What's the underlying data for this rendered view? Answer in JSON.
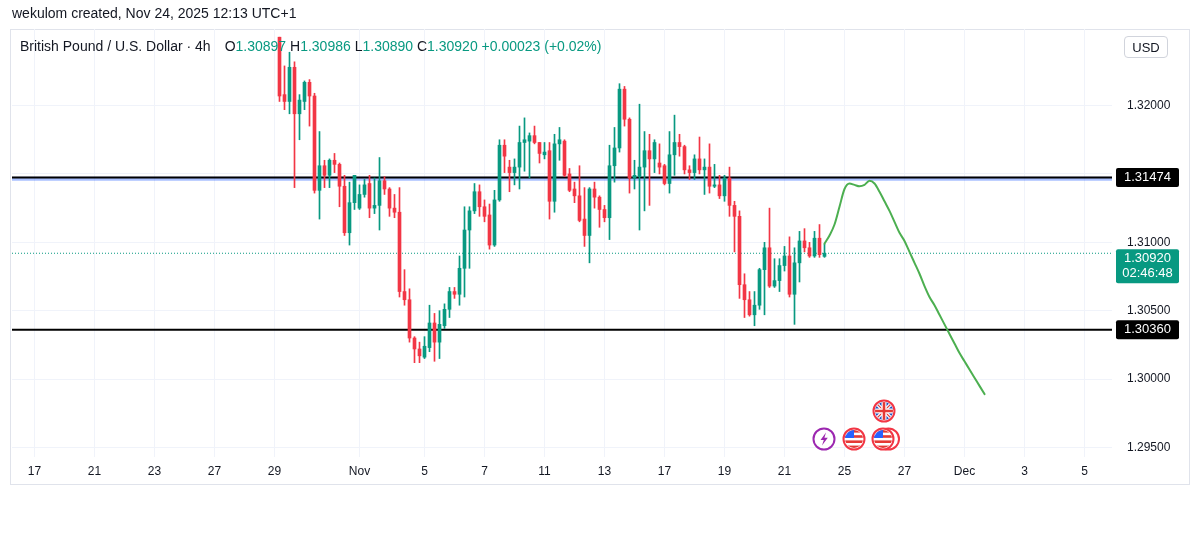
{
  "chart_data": {
    "type": "candlestick",
    "title": "British Pound / U.S. Dollar · 4h",
    "subtitle": "O1.30897 H1.30986 L1.30890 C1.30920 +0.00023 (+0.02%)",
    "ylabel": "USD",
    "annotations": [
      "wekulom created, Nov 24, 2025 12:13 UTC+1"
    ],
    "categories": [
      null,
      null,
      null,
      null,
      "17",
      null,
      null,
      null,
      null,
      null,
      null,
      null,
      null,
      null,
      null,
      null,
      "21",
      null,
      null,
      null,
      null,
      null,
      null,
      null,
      null,
      null,
      null,
      null,
      "23",
      null,
      null,
      null,
      null,
      null,
      null,
      null,
      null,
      null,
      null,
      null,
      "27",
      null,
      null,
      null,
      null,
      null,
      null,
      null,
      null,
      null,
      null,
      null,
      "29",
      null,
      null,
      null,
      null,
      null,
      null,
      null,
      null,
      null,
      null,
      null,
      null,
      null,
      null,
      null,
      null,
      "Nov",
      null,
      null,
      null,
      null,
      null,
      null,
      null,
      null,
      null,
      null,
      null,
      null,
      "5",
      null,
      null,
      null,
      null,
      null,
      null,
      null,
      null,
      null,
      null,
      null,
      "7",
      null,
      null,
      null,
      null,
      null,
      null,
      null,
      null,
      null,
      null,
      null,
      "11",
      null,
      null,
      null,
      null,
      null,
      null,
      null,
      null,
      null,
      null,
      null,
      "13",
      null,
      null,
      null,
      null,
      null,
      null,
      null,
      null,
      null,
      null,
      null,
      "17",
      null,
      null,
      null,
      null,
      null,
      null,
      null,
      null,
      null,
      null,
      null,
      "19",
      null,
      null,
      null,
      null,
      null,
      null,
      null,
      null,
      null,
      null,
      null,
      "21",
      null,
      null,
      null,
      null,
      null,
      null,
      null,
      null,
      null,
      null,
      null,
      "25",
      null,
      null,
      null,
      null,
      null,
      null,
      null,
      null,
      null,
      null,
      null,
      "27",
      null,
      null,
      null,
      null,
      null,
      null,
      null,
      null,
      null,
      null,
      null,
      "Dec",
      null,
      null,
      null,
      null,
      null,
      null,
      null,
      null,
      null,
      null,
      null,
      "3",
      null,
      null,
      null,
      null,
      null,
      null,
      null,
      null,
      null,
      null,
      null,
      "5",
      null,
      null,
      null,
      null,
      null
    ],
    "ohlc": [
      null,
      null,
      null,
      null,
      null,
      null,
      null,
      null,
      null,
      null,
      null,
      null,
      null,
      null,
      null,
      null,
      null,
      null,
      null,
      null,
      null,
      null,
      null,
      null,
      null,
      null,
      null,
      null,
      null,
      null,
      null,
      null,
      null,
      null,
      null,
      null,
      null,
      null,
      null,
      null,
      null,
      null,
      null,
      null,
      null,
      null,
      null,
      null,
      null,
      null,
      null,
      null,
      null,
      [
        1.325,
        1.325,
        1.3203,
        1.3207
      ],
      [
        1.3208,
        1.3229,
        1.3197,
        1.3203
      ],
      [
        1.3203,
        1.3239,
        1.3194,
        1.3228
      ],
      [
        1.3228,
        1.3232,
        1.314,
        1.3194
      ],
      [
        1.3194,
        1.3208,
        1.3175,
        1.3204
      ],
      [
        1.3203,
        1.3218,
        1.3197,
        1.3217
      ],
      [
        1.3217,
        1.3219,
        1.3185,
        1.3207
      ],
      [
        1.3207,
        1.3209,
        1.3136,
        1.3138
      ],
      [
        1.3138,
        1.3181,
        1.3117,
        1.3156
      ],
      [
        1.3156,
        1.316,
        1.314,
        1.3149
      ],
      [
        1.3149,
        1.3161,
        1.314,
        1.316
      ],
      [
        1.316,
        1.3165,
        1.3151,
        1.3157
      ],
      [
        1.3157,
        1.3158,
        1.3126,
        1.3141
      ],
      [
        1.3141,
        1.3149,
        1.3105,
        1.3107
      ],
      [
        1.3107,
        1.3144,
        1.3098,
        1.3129
      ],
      [
        1.3129,
        1.3149,
        1.3124,
        1.3149
      ],
      [
        1.3125,
        1.3142,
        1.3124,
        1.3135
      ],
      [
        1.3135,
        1.3146,
        1.3133,
        1.3142
      ],
      [
        1.3143,
        1.3149,
        1.3118,
        1.3125
      ],
      [
        1.3125,
        1.3147,
        1.3121,
        1.3127
      ],
      [
        1.3127,
        1.3162,
        1.3109,
        1.3145
      ],
      [
        1.3145,
        1.3148,
        1.3135,
        1.3139
      ],
      [
        1.3139,
        1.314,
        1.3119,
        1.3125
      ],
      [
        1.3125,
        1.3135,
        1.3118,
        1.3122
      ],
      [
        1.3122,
        1.314,
        1.306,
        1.3064
      ],
      [
        1.3064,
        1.308,
        1.3054,
        1.3058
      ],
      [
        1.3058,
        1.3066,
        1.3027,
        1.303
      ],
      [
        1.303,
        1.3031,
        1.3012,
        1.3022
      ],
      [
        1.3022,
        1.3027,
        1.3012,
        1.3017
      ],
      [
        1.3016,
        1.3031,
        1.3015,
        1.3024
      ],
      [
        1.3023,
        1.3054,
        1.302,
        1.3041
      ],
      [
        1.3041,
        1.3048,
        1.3013,
        1.3027
      ],
      [
        1.3027,
        1.305,
        1.3015,
        1.304
      ],
      [
        1.3039,
        1.3055,
        1.3037,
        1.3051
      ],
      [
        1.3051,
        1.3067,
        1.3045,
        1.3064
      ],
      [
        1.3064,
        1.3067,
        1.3059,
        1.3062
      ],
      [
        1.3062,
        1.309,
        1.3054,
        1.3081
      ],
      [
        1.3081,
        1.3126,
        1.306,
        1.3109
      ],
      [
        1.3109,
        1.3126,
        1.3081,
        1.3123
      ],
      [
        1.3123,
        1.3143,
        1.3121,
        1.3137
      ],
      [
        1.3137,
        1.3142,
        1.3119,
        1.3126
      ],
      [
        1.3126,
        1.3131,
        1.3115,
        1.3119
      ],
      [
        1.312,
        1.3128,
        1.3095,
        1.3098
      ],
      [
        1.3098,
        1.3138,
        1.3097,
        1.3131
      ],
      [
        1.3131,
        1.3175,
        1.313,
        1.3171
      ],
      [
        1.3171,
        1.3175,
        1.3151,
        1.3163
      ],
      [
        1.3155,
        1.316,
        1.3137,
        1.3151
      ],
      [
        1.3151,
        1.3161,
        1.3142,
        1.3155
      ],
      [
        1.3155,
        1.3185,
        1.3139,
        1.3173
      ],
      [
        1.3173,
        1.3191,
        1.3152,
        1.3175
      ],
      [
        1.3174,
        1.318,
        1.3147,
        1.3178
      ],
      [
        1.3178,
        1.3185,
        1.3172,
        1.3173
      ],
      [
        1.3173,
        1.3173,
        1.3158,
        1.3165
      ],
      [
        1.3164,
        1.3173,
        1.3161,
        1.3166
      ],
      [
        1.3167,
        1.3173,
        1.3117,
        1.313
      ],
      [
        1.313,
        1.3179,
        1.3122,
        1.3172
      ],
      [
        1.3172,
        1.3184,
        1.316,
        1.3175
      ],
      [
        1.3174,
        1.3175,
        1.3148,
        1.3149
      ],
      [
        1.315,
        1.3154,
        1.3137,
        1.3138
      ],
      [
        1.3139,
        1.3144,
        1.3129,
        1.3134
      ],
      [
        1.3134,
        1.3156,
        1.3115,
        1.3116
      ],
      [
        1.3117,
        1.314,
        1.3097,
        1.3105
      ],
      [
        1.3105,
        1.314,
        1.3085,
        1.3139
      ],
      [
        1.3139,
        1.3144,
        1.3125,
        1.3133
      ],
      [
        1.3133,
        1.3134,
        1.3111,
        1.3124
      ],
      [
        1.3124,
        1.3127,
        1.3115,
        1.3118
      ],
      [
        1.3118,
        1.3171,
        1.3102,
        1.3156
      ],
      [
        1.3156,
        1.3184,
        1.3144,
        1.3169
      ],
      [
        1.3169,
        1.3216,
        1.3166,
        1.3212
      ],
      [
        1.3212,
        1.3214,
        1.3185,
        1.319
      ],
      [
        1.319,
        1.3191,
        1.3136,
        1.3147
      ],
      [
        1.3147,
        1.316,
        1.3139,
        1.3149
      ],
      [
        1.3148,
        1.3201,
        1.3109,
        1.3155
      ],
      [
        1.3155,
        1.3181,
        1.3123,
        1.3167
      ],
      [
        1.3167,
        1.3179,
        1.3127,
        1.3161
      ],
      [
        1.3161,
        1.3175,
        1.3151,
        1.3173
      ],
      [
        1.3158,
        1.3172,
        1.315,
        1.3155
      ],
      [
        1.3156,
        1.3157,
        1.3142,
        1.3143
      ],
      [
        1.3143,
        1.3181,
        1.3136,
        1.3164
      ],
      [
        1.3164,
        1.3193,
        1.3149,
        1.3173
      ],
      [
        1.3173,
        1.3179,
        1.3163,
        1.317
      ],
      [
        1.317,
        1.3171,
        1.315,
        1.3153
      ],
      [
        1.3153,
        1.3156,
        1.3146,
        1.3151
      ],
      [
        1.3151,
        1.3164,
        1.3146,
        1.3161
      ],
      [
        1.3161,
        1.3177,
        1.315,
        1.3153
      ],
      [
        1.3153,
        1.3161,
        1.3135,
        1.3155
      ],
      [
        1.3155,
        1.3172,
        1.3136,
        1.3141
      ],
      [
        1.3141,
        1.3157,
        1.314,
        1.3142
      ],
      [
        1.3142,
        1.3149,
        1.3132,
        1.3134
      ],
      [
        1.3134,
        1.3149,
        1.313,
        1.3147
      ],
      [
        1.3147,
        1.3155,
        1.3119,
        1.3127
      ],
      [
        1.3127,
        1.313,
        1.3093,
        1.3119
      ],
      [
        1.3119,
        1.3123,
        1.3059,
        1.3069
      ],
      [
        1.3069,
        1.3077,
        1.3045,
        1.3058
      ],
      [
        1.3058,
        1.3064,
        1.3046,
        1.3047
      ],
      [
        1.3047,
        1.3064,
        1.3039,
        1.3054
      ],
      [
        1.3054,
        1.3081,
        1.3051,
        1.308
      ],
      [
        1.308,
        1.31,
        1.3047,
        1.3096
      ],
      [
        1.3096,
        1.3125,
        1.3067,
        1.3068
      ],
      [
        1.3068,
        1.3088,
        1.3067,
        1.3072
      ],
      [
        1.3072,
        1.3088,
        1.3064,
        1.3083
      ],
      [
        1.3083,
        1.3097,
        1.3079,
        1.309
      ],
      [
        1.309,
        1.3104,
        1.306,
        1.3062
      ],
      [
        1.3062,
        1.3096,
        1.304,
        1.3085
      ],
      [
        1.3085,
        1.3108,
        1.3071,
        1.3101
      ],
      [
        1.3101,
        1.311,
        1.3093,
        1.3096
      ],
      [
        1.3096,
        1.31,
        1.3089,
        1.309
      ],
      [
        1.309,
        1.3108,
        1.3089,
        1.3103
      ],
      [
        1.3103,
        1.3113,
        1.3089,
        1.3091
      ],
      [
        1.30897,
        1.30986,
        1.3089,
        1.3092
      ],
      null,
      null,
      null,
      null,
      null,
      null,
      null,
      null,
      null,
      null,
      null,
      null,
      null,
      null,
      null,
      null,
      null,
      null,
      null,
      null,
      null,
      null,
      null,
      null,
      null,
      null,
      null,
      null,
      null,
      null,
      null,
      null,
      null,
      null,
      null,
      null,
      null,
      null,
      null,
      null,
      null,
      null,
      null,
      null,
      null,
      null,
      null,
      null,
      null,
      null,
      null,
      null,
      null,
      null,
      null,
      null,
      null
    ],
    "colors": [
      null,
      null,
      null,
      null,
      null,
      null,
      null,
      null,
      null,
      null,
      null,
      null,
      null,
      null,
      null,
      null,
      null,
      null,
      null,
      null,
      null,
      null,
      null,
      null,
      null,
      null,
      null,
      null,
      null,
      null,
      null,
      null,
      null,
      null,
      null,
      null,
      null,
      null,
      null,
      null,
      null,
      null,
      null,
      null,
      null,
      null,
      null,
      null,
      null,
      null,
      null,
      null,
      null,
      "#f23645",
      "#f23645",
      "#089981",
      "#f23645",
      "#089981",
      "#089981",
      "#f23645",
      "#f23645",
      "#089981",
      "#f23645",
      "#089981",
      "#f23645",
      "#f23645",
      "#f23645",
      "#089981",
      "#089981",
      "#089981",
      "#089981",
      "#f23645",
      "#089981",
      "#089981",
      "#f23645",
      "#f23645",
      "#f23645",
      "#f23645",
      "#f23645",
      "#f23645",
      "#f23645",
      "#f23645",
      "#089981",
      "#089981",
      "#f23645",
      "#089981",
      "#089981",
      "#089981",
      "#f23645",
      "#089981",
      "#089981",
      "#089981",
      "#089981",
      "#f23645",
      "#f23645",
      "#f23645",
      "#089981",
      "#089981",
      "#f23645",
      "#f23645",
      "#089981",
      "#089981",
      "#089981",
      "#089981",
      "#f23645",
      "#f23645",
      "#089981",
      "#f23645",
      "#089981",
      "#089981",
      "#f23645",
      "#f23645",
      "#f23645",
      "#f23645",
      "#f23645",
      "#089981",
      "#f23645",
      "#f23645",
      "#f23645",
      "#089981",
      "#089981",
      "#089981",
      "#f23645",
      "#f23645",
      "#089981",
      "#089981",
      "#089981",
      "#f23645",
      "#089981",
      "#f23645",
      "#f23645",
      "#089981",
      "#089981",
      "#f23645",
      "#f23645",
      "#f23645",
      "#089981",
      "#f23645",
      "#089981",
      "#f23645",
      "#089981",
      "#f23645",
      "#089981",
      "#f23645",
      "#f23645",
      "#f23645",
      "#f23645",
      "#f23645",
      "#089981",
      "#089981",
      "#089981",
      "#f23645",
      "#089981",
      "#089981",
      "#089981",
      "#f23645",
      "#089981",
      "#089981",
      "#f23645",
      "#f23645",
      "#089981",
      "#f23645",
      "#089981",
      null,
      null,
      null,
      null,
      null,
      null,
      null,
      null,
      null,
      null,
      null,
      null,
      null,
      null,
      null,
      null,
      null,
      null,
      null,
      null,
      null,
      null,
      null,
      null,
      null,
      null,
      null,
      null,
      null,
      null,
      null,
      null,
      null,
      null,
      null,
      null,
      null,
      null,
      null,
      null,
      null,
      null,
      null,
      null,
      null,
      null,
      null,
      null,
      null,
      null,
      null,
      null,
      null,
      null,
      null,
      null,
      null
    ],
    "series": [
      {
        "type": "line",
        "color": "#4caf50",
        "values": [
          null,
          null,
          null,
          null,
          null,
          null,
          null,
          null,
          null,
          null,
          null,
          null,
          null,
          null,
          null,
          null,
          null,
          null,
          null,
          null,
          null,
          null,
          null,
          null,
          null,
          null,
          null,
          null,
          null,
          null,
          null,
          null,
          null,
          null,
          null,
          null,
          null,
          null,
          null,
          null,
          null,
          null,
          null,
          null,
          null,
          null,
          null,
          null,
          null,
          null,
          null,
          null,
          null,
          null,
          null,
          null,
          null,
          null,
          null,
          null,
          null,
          null,
          null,
          null,
          null,
          null,
          null,
          null,
          null,
          null,
          null,
          null,
          null,
          null,
          null,
          null,
          null,
          null,
          null,
          null,
          null,
          null,
          null,
          null,
          null,
          null,
          null,
          null,
          null,
          null,
          null,
          null,
          null,
          null,
          null,
          null,
          null,
          null,
          null,
          null,
          null,
          null,
          null,
          null,
          null,
          null,
          null,
          null,
          null,
          null,
          null,
          null,
          null,
          null,
          null,
          null,
          null,
          null,
          null,
          null,
          null,
          null,
          null,
          null,
          null,
          null,
          null,
          null,
          null,
          null,
          null,
          null,
          null,
          null,
          null,
          null,
          null,
          null,
          null,
          null,
          null,
          null,
          null,
          null,
          null,
          null,
          null,
          null,
          null,
          null,
          null,
          null,
          null,
          null,
          null,
          null,
          null,
          null,
          null,
          null,
          null,
          null,
          1.3099,
          1.3105,
          1.3113,
          1.3126,
          1.3139,
          1.3143,
          1.3142,
          1.3141,
          1.3142,
          1.3145,
          1.3143,
          1.3137,
          1.313,
          1.3123,
          1.3115,
          1.3107,
          1.3101,
          1.3093,
          1.3085,
          1.3077,
          1.3068,
          1.306,
          1.3054,
          1.3047,
          1.304,
          1.3033,
          1.3026,
          1.3019,
          1.3013,
          1.3007,
          1.3001,
          1.2995,
          1.2989,
          null,
          null,
          null,
          null,
          null,
          null,
          null,
          null,
          null,
          null,
          null,
          null,
          null,
          null,
          null,
          null,
          null,
          null,
          null,
          null,
          null,
          null,
          null,
          null,
          null
        ]
      }
    ],
    "ylim": [
      1.2943,
      1.3256
    ],
    "yticks": [
      {
        "value": 1.295,
        "label": "1.29500"
      },
      {
        "value": 1.3,
        "label": "1.30000"
      },
      {
        "value": 1.305,
        "label": "1.30500"
      },
      {
        "value": 1.31,
        "label": "1.31000"
      },
      {
        "value": 1.315,
        "label": null
      },
      {
        "value": 1.32,
        "label": "1.32000"
      }
    ],
    "ref_lines": [
      {
        "axis": "y",
        "value": 1.31474,
        "label": "1.31474",
        "color": "#000000",
        "line_style": "solid"
      },
      {
        "axis": "y",
        "value": 1.3036,
        "label": "1.30360",
        "color": "#000000",
        "line_style": "solid"
      },
      {
        "axis": "y",
        "value": 1.3092,
        "label": "1.30920\n02:46:48",
        "color": "#089981",
        "line_style": "dotted"
      }
    ],
    "bands": [
      {
        "axis": "y",
        "from": 1.3145,
        "to": 1.3148,
        "color": "#2962ff"
      }
    ],
    "grid": true,
    "marker": "none",
    "line_style": "solid"
  }
}
